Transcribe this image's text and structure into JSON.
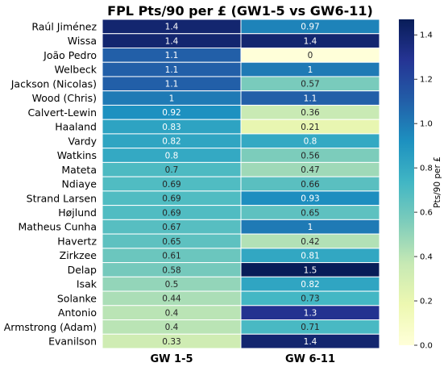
{
  "chart_data": {
    "type": "heatmap",
    "title": "FPL Pts/90 per £ (GW1-5 vs GW6-11)",
    "columns": [
      "GW 1-5",
      "GW 6-11"
    ],
    "rows": [
      "Raúl Jiménez",
      "Wissa",
      "João Pedro",
      "Welbeck",
      "Jackson (Nicolas)",
      "Wood (Chris)",
      "Calvert-Lewin",
      "Haaland",
      "Vardy",
      "Watkins",
      "Mateta",
      "Ndiaye",
      "Strand Larsen",
      "Højlund",
      "Matheus Cunha",
      "Havertz",
      "Zirkzee",
      "Delap",
      "Isak",
      "Solanke",
      "Antonio",
      "Armstrong (Adam)",
      "Evanilson"
    ],
    "values": [
      [
        1.4,
        0.97
      ],
      [
        1.4,
        1.4
      ],
      [
        1.1,
        0
      ],
      [
        1.1,
        1
      ],
      [
        1.1,
        0.57
      ],
      [
        1,
        1.1
      ],
      [
        0.92,
        0.36
      ],
      [
        0.83,
        0.21
      ],
      [
        0.82,
        0.8
      ],
      [
        0.8,
        0.56
      ],
      [
        0.7,
        0.47
      ],
      [
        0.69,
        0.66
      ],
      [
        0.69,
        0.93
      ],
      [
        0.69,
        0.65
      ],
      [
        0.67,
        1
      ],
      [
        0.65,
        0.42
      ],
      [
        0.61,
        0.81
      ],
      [
        0.58,
        1.5
      ],
      [
        0.5,
        0.82
      ],
      [
        0.44,
        0.73
      ],
      [
        0.4,
        1.3
      ],
      [
        0.4,
        0.71
      ],
      [
        0.33,
        1.4
      ]
    ],
    "labels": [
      [
        "1.4",
        "0.97"
      ],
      [
        "1.4",
        "1.4"
      ],
      [
        "1.1",
        "0"
      ],
      [
        "1.1",
        "1"
      ],
      [
        "1.1",
        "0.57"
      ],
      [
        "1",
        "1.1"
      ],
      [
        "0.92",
        "0.36"
      ],
      [
        "0.83",
        "0.21"
      ],
      [
        "0.82",
        "0.8"
      ],
      [
        "0.8",
        "0.56"
      ],
      [
        "0.7",
        "0.47"
      ],
      [
        "0.69",
        "0.66"
      ],
      [
        "0.69",
        "0.93"
      ],
      [
        "0.69",
        "0.65"
      ],
      [
        "0.67",
        "1"
      ],
      [
        "0.65",
        "0.42"
      ],
      [
        "0.61",
        "0.81"
      ],
      [
        "0.58",
        "1.5"
      ],
      [
        "0.5",
        "0.82"
      ],
      [
        "0.44",
        "0.73"
      ],
      [
        "0.4",
        "1.3"
      ],
      [
        "0.4",
        "0.71"
      ],
      [
        "0.33",
        "1.4"
      ]
    ],
    "colorbar": {
      "label": "Pts/90 per £",
      "range": [
        0,
        1.47
      ],
      "ticks": [
        "0.0",
        "0.2",
        "0.4",
        "0.6",
        "0.8",
        "1.0",
        "1.2",
        "1.4"
      ],
      "colormap": "YlGnBu"
    },
    "grid": false
  }
}
